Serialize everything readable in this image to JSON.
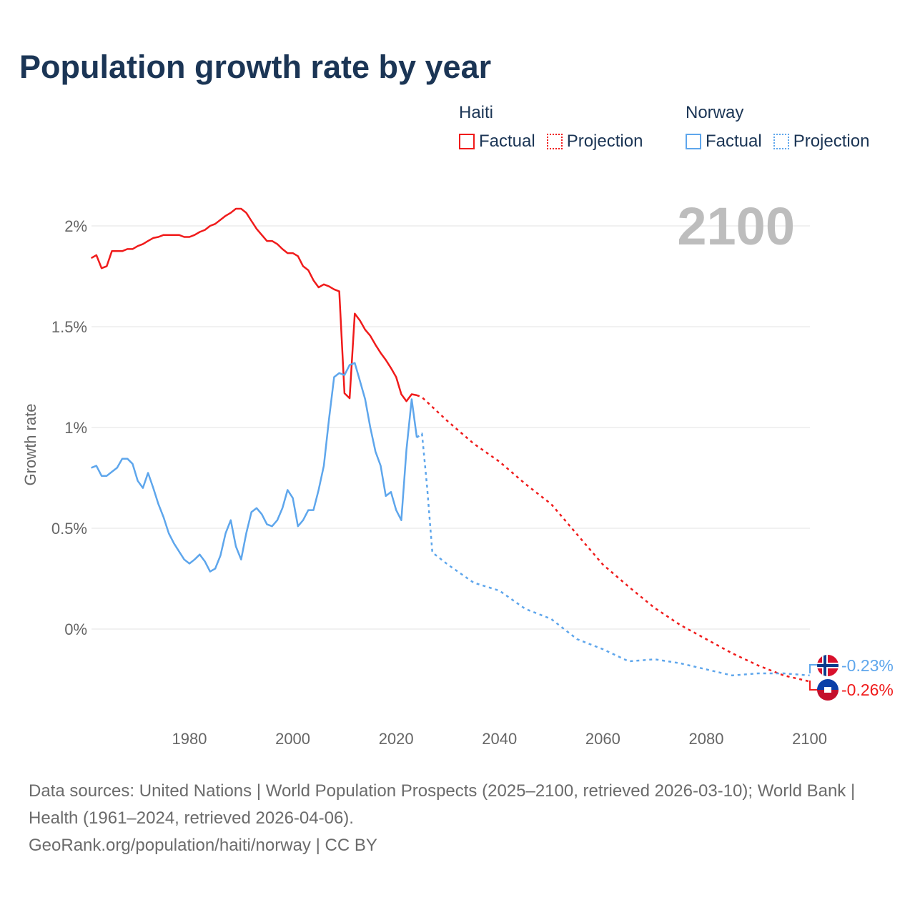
{
  "title": "Population growth rate by year",
  "legend": {
    "groups": [
      {
        "name": "Haiti",
        "factual": "Factual",
        "projection": "Projection",
        "color": "#f01b1b"
      },
      {
        "name": "Norway",
        "factual": "Factual",
        "projection": "Projection",
        "color": "#5ea6ec"
      }
    ]
  },
  "year_display": "2100",
  "end_labels": {
    "norway": "-0.23%",
    "haiti": "-0.26%"
  },
  "footer": {
    "sources": "Data sources: United Nations | World Population Prospects (2025–2100, retrieved 2026-03-10); World Bank | Health (1961–2024, retrieved 2026-04-06).",
    "credit": "GeoRank.org/population/haiti/norway | CC BY"
  },
  "chart_data": {
    "type": "line",
    "title": "Population growth rate by year",
    "xlabel": "",
    "ylabel": "Growth rate",
    "xlim": [
      1961,
      2100
    ],
    "ylim": [
      -0.4,
      2.2
    ],
    "xticks": [
      {
        "v": 1980,
        "label": "1980"
      },
      {
        "v": 2000,
        "label": "2000"
      },
      {
        "v": 2020,
        "label": "2020"
      },
      {
        "v": 2040,
        "label": "2040"
      },
      {
        "v": 2060,
        "label": "2060"
      },
      {
        "v": 2080,
        "label": "2080"
      },
      {
        "v": 2100,
        "label": "2100"
      }
    ],
    "yticks": [
      {
        "v": 0,
        "label": "0%"
      },
      {
        "v": 0.5,
        "label": "0.5%"
      },
      {
        "v": 1,
        "label": "1%"
      },
      {
        "v": 1.5,
        "label": "1.5%"
      },
      {
        "v": 2,
        "label": "2%"
      }
    ],
    "grid": true,
    "series": [
      {
        "name": "Haiti",
        "kind": "factual",
        "color": "#f01b1b",
        "x_start": 1961,
        "values": [
          1.84,
          1.855,
          1.79,
          1.8,
          1.875,
          1.875,
          1.875,
          1.885,
          1.885,
          1.9,
          1.91,
          1.925,
          1.94,
          1.945,
          1.955,
          1.955,
          1.955,
          1.955,
          1.945,
          1.945,
          1.955,
          1.97,
          1.98,
          2.0,
          2.01,
          2.03,
          2.05,
          2.065,
          2.085,
          2.085,
          2.065,
          2.025,
          1.985,
          1.955,
          1.925,
          1.925,
          1.91,
          1.885,
          1.865,
          1.865,
          1.85,
          1.8,
          1.78,
          1.73,
          1.695,
          1.71,
          1.7,
          1.685,
          1.675,
          1.17,
          1.145,
          1.565,
          1.53,
          1.485,
          1.455,
          1.41,
          1.37,
          1.335,
          1.295,
          1.25,
          1.165,
          1.13,
          1.165,
          1.16
        ]
      },
      {
        "name": "Haiti",
        "kind": "projection",
        "color": "#f01b1b",
        "x": [
          2024,
          2025,
          2030,
          2035,
          2040,
          2045,
          2050,
          2055,
          2060,
          2065,
          2070,
          2075,
          2080,
          2085,
          2090,
          2095,
          2100
        ],
        "values": [
          1.16,
          1.15,
          1.03,
          0.92,
          0.83,
          0.72,
          0.62,
          0.47,
          0.32,
          0.21,
          0.105,
          0.02,
          -0.05,
          -0.12,
          -0.18,
          -0.23,
          -0.26
        ]
      },
      {
        "name": "Norway",
        "kind": "factual",
        "color": "#5ea6ec",
        "x_start": 1961,
        "values": [
          0.8,
          0.81,
          0.76,
          0.76,
          0.78,
          0.8,
          0.845,
          0.845,
          0.82,
          0.735,
          0.7,
          0.775,
          0.7,
          0.62,
          0.555,
          0.475,
          0.425,
          0.385,
          0.345,
          0.325,
          0.345,
          0.37,
          0.335,
          0.285,
          0.3,
          0.365,
          0.475,
          0.54,
          0.41,
          0.345,
          0.475,
          0.58,
          0.6,
          0.57,
          0.52,
          0.51,
          0.54,
          0.6,
          0.69,
          0.65,
          0.51,
          0.54,
          0.59,
          0.59,
          0.69,
          0.81,
          1.04,
          1.25,
          1.27,
          1.26,
          1.31,
          1.32,
          1.23,
          1.14,
          1.0,
          0.88,
          0.81,
          0.66,
          0.68,
          0.59,
          0.54,
          0.89,
          1.14,
          0.95
        ]
      },
      {
        "name": "Norway",
        "kind": "projection",
        "color": "#5ea6ec",
        "x": [
          2024,
          2025,
          2026,
          2027,
          2030,
          2035,
          2040,
          2045,
          2050,
          2055,
          2060,
          2065,
          2070,
          2075,
          2080,
          2085,
          2090,
          2095,
          2100
        ],
        "values": [
          0.95,
          0.97,
          0.7,
          0.38,
          0.32,
          0.23,
          0.19,
          0.1,
          0.05,
          -0.05,
          -0.1,
          -0.16,
          -0.15,
          -0.17,
          -0.2,
          -0.23,
          -0.22,
          -0.22,
          -0.23
        ]
      }
    ]
  }
}
